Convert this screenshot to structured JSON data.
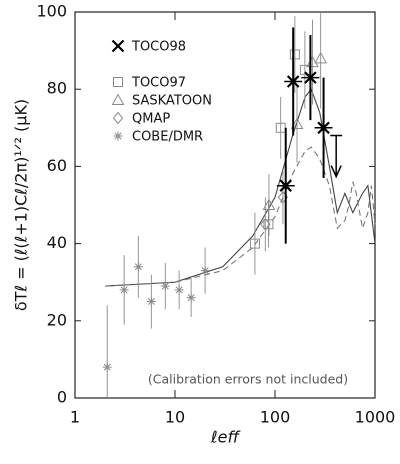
{
  "chart_data": {
    "type": "scatter",
    "log_x": true,
    "x_label": "ℓeff",
    "y_label": "δTℓ = (ℓ(ℓ+1)Cℓ/2π)¹ᐟ² (μK)",
    "annotation": "(Calibration errors not included)",
    "xlim": [
      1,
      1000
    ],
    "xticks": [
      1,
      10,
      100,
      1000
    ],
    "ylim": [
      0,
      100
    ],
    "yticks": [
      0,
      20,
      40,
      60,
      80,
      100
    ],
    "series": [
      {
        "name": "TOCO98",
        "marker": "x",
        "color": "#000000",
        "x": [
          128,
          152,
          226,
          306
        ],
        "values": [
          55,
          82,
          83,
          70
        ],
        "errors": [
          15,
          14,
          11,
          13
        ],
        "upper_limits": {
          "x": [
            409
          ],
          "values": [
            68
          ]
        }
      },
      {
        "name": "TOCO97",
        "marker": "square",
        "color": "#8a8a8a",
        "x": [
          63,
          86,
          114,
          158,
          199
        ],
        "values": [
          40,
          45,
          70,
          89,
          85
        ],
        "errors": [
          8,
          6,
          8,
          10,
          10
        ]
      },
      {
        "name": "SASKATOON",
        "marker": "triangle",
        "color": "#8a8a8a",
        "x": [
          87,
          166,
          237,
          286
        ],
        "values": [
          50,
          71,
          87,
          88
        ],
        "errors": [
          8,
          10,
          11,
          13
        ]
      },
      {
        "name": "QMAP",
        "marker": "diamond",
        "color": "#8a8a8a",
        "x": [
          80,
          120
        ],
        "values": [
          45,
          52
        ],
        "errors": [
          7,
          7
        ]
      },
      {
        "name": "COBE/DMR",
        "marker": "asterisk",
        "color": "#8a8a8a",
        "x": [
          2.1,
          3.1,
          4.3,
          5.8,
          8,
          11,
          14.5,
          20
        ],
        "values": [
          8,
          28,
          34,
          25,
          29,
          28,
          26,
          33
        ],
        "errors": [
          16,
          9,
          8,
          7,
          6,
          5,
          5,
          6
        ]
      }
    ],
    "curves": [
      {
        "style": "solid",
        "color": "#444444",
        "x": [
          2,
          10,
          30,
          60,
          100,
          150,
          200,
          230,
          280,
          350,
          420,
          500,
          600,
          750,
          850,
          1000
        ],
        "values": [
          29,
          30,
          34,
          42,
          52,
          68,
          78,
          80,
          74,
          60,
          48,
          53,
          48,
          53,
          55,
          40
        ]
      },
      {
        "style": "dashed",
        "color": "#777777",
        "x": [
          2,
          10,
          30,
          60,
          100,
          150,
          200,
          230,
          280,
          350,
          420,
          500,
          550,
          600,
          650,
          750,
          850,
          920,
          1000
        ],
        "values": [
          29,
          30,
          33,
          39,
          47,
          58,
          64,
          65,
          62,
          55,
          44,
          46,
          50,
          56,
          53,
          44,
          48,
          55,
          45
        ]
      }
    ]
  }
}
